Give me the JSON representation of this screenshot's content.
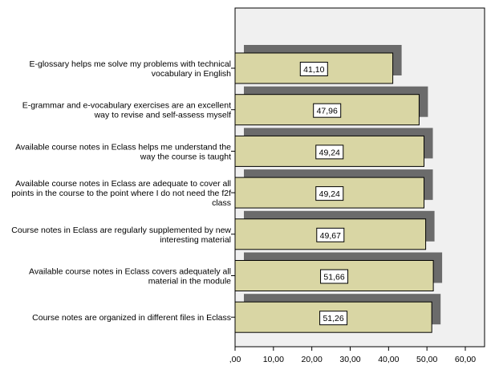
{
  "chart_data": {
    "type": "bar",
    "orientation": "horizontal",
    "categories": [
      [
        "E-glossary helps me solve my problems with technical",
        "vocabulary in English"
      ],
      [
        "E-grammar and e-vocabulary exercises are an excellent",
        "way to revise and self-assess myself"
      ],
      [
        "Available course notes in Eclass helps me understand the",
        "way the course is taught"
      ],
      [
        "Available course notes in Eclass are adequate to cover all",
        "points in the course to the point where I do not need the f2f",
        "class"
      ],
      [
        "Course notes in Eclass are regularly supplemented by new",
        "interesting material"
      ],
      [
        "Available course notes in Eclass covers adequately all",
        "material in the module"
      ],
      [
        "Course notes are organized in different files in Eclass"
      ]
    ],
    "values": [
      41.1,
      47.96,
      49.24,
      49.24,
      49.67,
      51.66,
      51.26
    ],
    "data_labels": [
      "41,10",
      "47,96",
      "49,24",
      "49,24",
      "49,67",
      "51,66",
      "51,26"
    ],
    "xlim": [
      0,
      65
    ],
    "xticks": [
      0,
      10,
      20,
      30,
      40,
      50,
      60
    ],
    "xtick_labels": [
      ",00",
      "10,00",
      "20,00",
      "30,00",
      "40,00",
      "50,00",
      "60,00"
    ],
    "title": "",
    "xlabel": "",
    "ylabel": "",
    "grid": false,
    "style": "3d-shadow",
    "colors": {
      "bar_fill": "#d9d6a4",
      "bar_stroke": "#000000",
      "shadow": "#6b6b6b",
      "plot_background": "#f0f0f0"
    }
  }
}
